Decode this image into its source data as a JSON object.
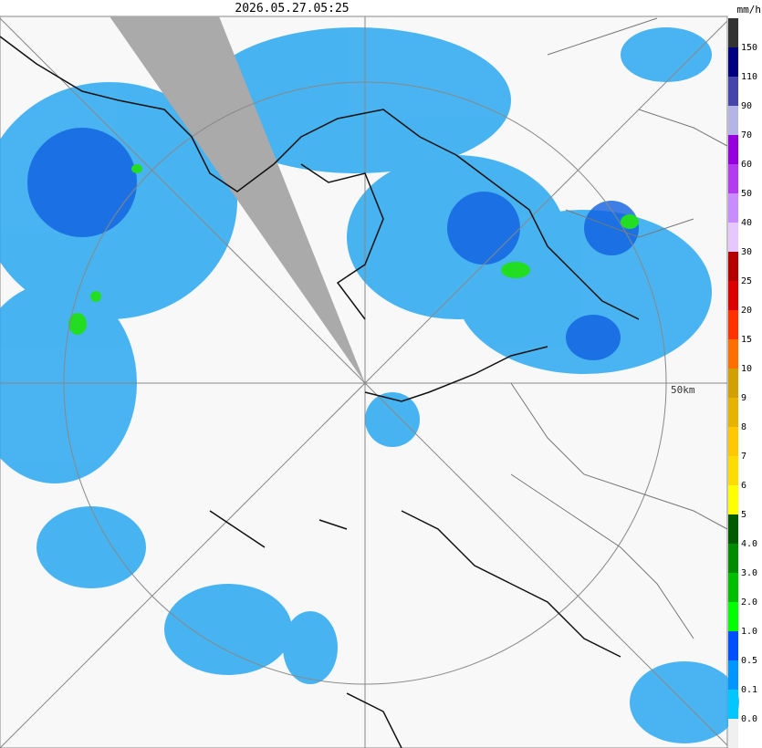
{
  "header": {
    "timestamp": "2026.05.27.05:25",
    "unit": "mm/h"
  },
  "map": {
    "range_label": "50km"
  },
  "legend": {
    "colors": [
      "#333333",
      "#000080",
      "#4646aa",
      "#b4b4e6",
      "#9600dc",
      "#b43cf0",
      "#c88cff",
      "#e6c8ff",
      "#b40000",
      "#dc0000",
      "#ff3200",
      "#ff6e00",
      "#d2a000",
      "#e6b400",
      "#ffc800",
      "#ffdc00",
      "#ffff00",
      "#005a00",
      "#008c00",
      "#00be00",
      "#00ff00",
      "#0050ff",
      "#0096ff",
      "#00c8ff",
      "#f0f0f0"
    ],
    "labels": [
      "150",
      "110",
      "90",
      "70",
      "60",
      "50",
      "40",
      "30",
      "25",
      "20",
      "15",
      "10",
      "9",
      "8",
      "7",
      "6",
      "5",
      "4.0",
      "3.0",
      "2.0",
      "1.0",
      "0.5",
      "0.1",
      "0.0"
    ]
  }
}
